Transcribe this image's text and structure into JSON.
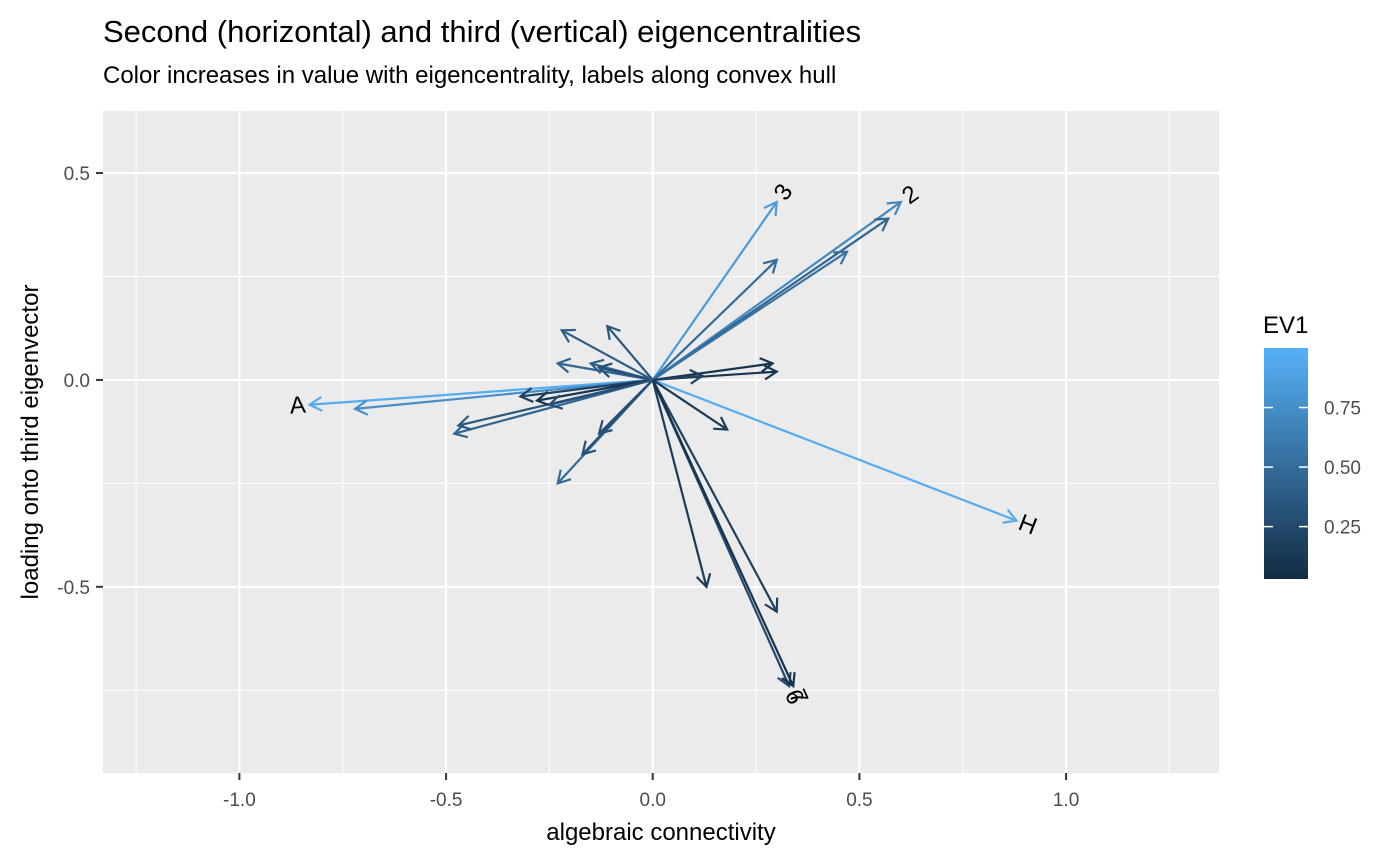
{
  "title": "Second (horizontal) and third (vertical) eigencentralities",
  "subtitle": "Color increases in value with eigencentrality, labels along convex hull",
  "chart_data": {
    "type": "scatter",
    "title": "Second (horizontal) and third (vertical) eigencentralities",
    "subtitle": "Color increases in value with eigencentrality, labels along convex hull",
    "xlabel": "algebraic connectivity",
    "ylabel": "loading onto third eigenvector",
    "xlim": [
      -1.33,
      1.37
    ],
    "ylim": [
      -0.95,
      0.65
    ],
    "x_ticks": [
      -1.0,
      -0.5,
      0.0,
      0.5,
      1.0
    ],
    "x_tick_labels": [
      "-1.0",
      "-0.5",
      "0.0",
      "0.5",
      "1.0"
    ],
    "y_ticks": [
      -0.5,
      0.0,
      0.5
    ],
    "y_tick_labels": [
      "-0.5",
      "0.0",
      "0.5"
    ],
    "grid": true,
    "legend": {
      "title": "EV1",
      "position": "right",
      "type": "colorbar",
      "range": [
        0.03,
        1.0
      ],
      "ticks": [
        0.25,
        0.5,
        0.75
      ],
      "tick_labels": [
        "0.25",
        "0.50",
        "0.75"
      ],
      "low_color": "#132B43",
      "high_color": "#56B1F7"
    },
    "arrows": [
      {
        "x": -0.83,
        "y": -0.06,
        "ev1": 0.97,
        "label": "A"
      },
      {
        "x": -0.72,
        "y": -0.07,
        "ev1": 0.75,
        "label": ""
      },
      {
        "x": 0.88,
        "y": -0.34,
        "ev1": 0.97,
        "label": "H"
      },
      {
        "x": 0.3,
        "y": 0.43,
        "ev1": 0.85,
        "label": "3"
      },
      {
        "x": 0.6,
        "y": 0.43,
        "ev1": 0.7,
        "label": "2"
      },
      {
        "x": 0.57,
        "y": 0.39,
        "ev1": 0.45,
        "label": ""
      },
      {
        "x": 0.47,
        "y": 0.31,
        "ev1": 0.55,
        "label": ""
      },
      {
        "x": 0.3,
        "y": 0.29,
        "ev1": 0.5,
        "label": ""
      },
      {
        "x": 0.3,
        "y": 0.02,
        "ev1": 0.12,
        "label": ""
      },
      {
        "x": 0.29,
        "y": 0.04,
        "ev1": 0.08,
        "label": ""
      },
      {
        "x": 0.12,
        "y": 0.01,
        "ev1": 0.2,
        "label": ""
      },
      {
        "x": 0.18,
        "y": -0.12,
        "ev1": 0.15,
        "label": ""
      },
      {
        "x": 0.13,
        "y": -0.5,
        "ev1": 0.15,
        "label": ""
      },
      {
        "x": 0.3,
        "y": -0.56,
        "ev1": 0.18,
        "label": ""
      },
      {
        "x": 0.33,
        "y": -0.74,
        "ev1": 0.25,
        "label": "6"
      },
      {
        "x": 0.34,
        "y": -0.74,
        "ev1": 0.08,
        "label": "7"
      },
      {
        "x": -0.23,
        "y": -0.25,
        "ev1": 0.5,
        "label": ""
      },
      {
        "x": -0.17,
        "y": -0.18,
        "ev1": 0.3,
        "label": ""
      },
      {
        "x": -0.13,
        "y": -0.13,
        "ev1": 0.3,
        "label": ""
      },
      {
        "x": -0.48,
        "y": -0.13,
        "ev1": 0.45,
        "label": ""
      },
      {
        "x": -0.47,
        "y": -0.11,
        "ev1": 0.35,
        "label": ""
      },
      {
        "x": -0.32,
        "y": -0.04,
        "ev1": 0.2,
        "label": ""
      },
      {
        "x": -0.28,
        "y": -0.05,
        "ev1": 0.1,
        "label": ""
      },
      {
        "x": -0.25,
        "y": -0.06,
        "ev1": 0.3,
        "label": ""
      },
      {
        "x": -0.23,
        "y": 0.04,
        "ev1": 0.45,
        "label": ""
      },
      {
        "x": -0.15,
        "y": 0.04,
        "ev1": 0.4,
        "label": ""
      },
      {
        "x": -0.13,
        "y": 0.03,
        "ev1": 0.3,
        "label": ""
      },
      {
        "x": -0.22,
        "y": 0.12,
        "ev1": 0.4,
        "label": ""
      },
      {
        "x": -0.11,
        "y": 0.13,
        "ev1": 0.35,
        "label": ""
      }
    ]
  }
}
